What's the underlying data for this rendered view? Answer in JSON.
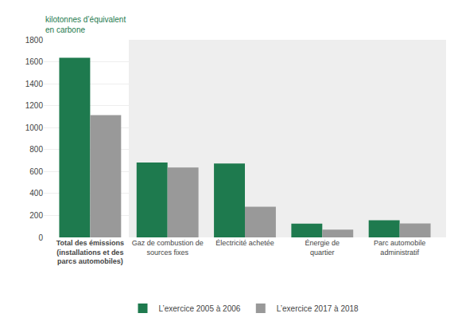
{
  "chart_data": {
    "type": "bar",
    "ylabel": "kilotonnes d’équivalent\nen carbone",
    "categories": [
      "Total des émissions\n(installations et des\nparcs automobiles)",
      "Gaz de combustion de\nsources fixes",
      "Électricité achetée",
      "Énergie de\nquartier",
      "Parc automobile\nadministratif"
    ],
    "series": [
      {
        "name": "L’exercice 2005 à 2006",
        "color": "#1e7a4e",
        "values": [
          1636.7,
          681.9,
          672.6,
          125.8,
          156.3
        ]
      },
      {
        "name": "L’exercice 2017 à 2018",
        "color": "#999999",
        "values": [
          1114.1,
          637.6,
          279.1,
          70.2,
          127.1
        ]
      }
    ],
    "ylim": [
      0,
      1800
    ],
    "yticks": [
      0,
      200,
      400,
      600,
      800,
      1000,
      1200,
      1400,
      1600,
      1800
    ],
    "grid": true,
    "legend": "bottom"
  }
}
